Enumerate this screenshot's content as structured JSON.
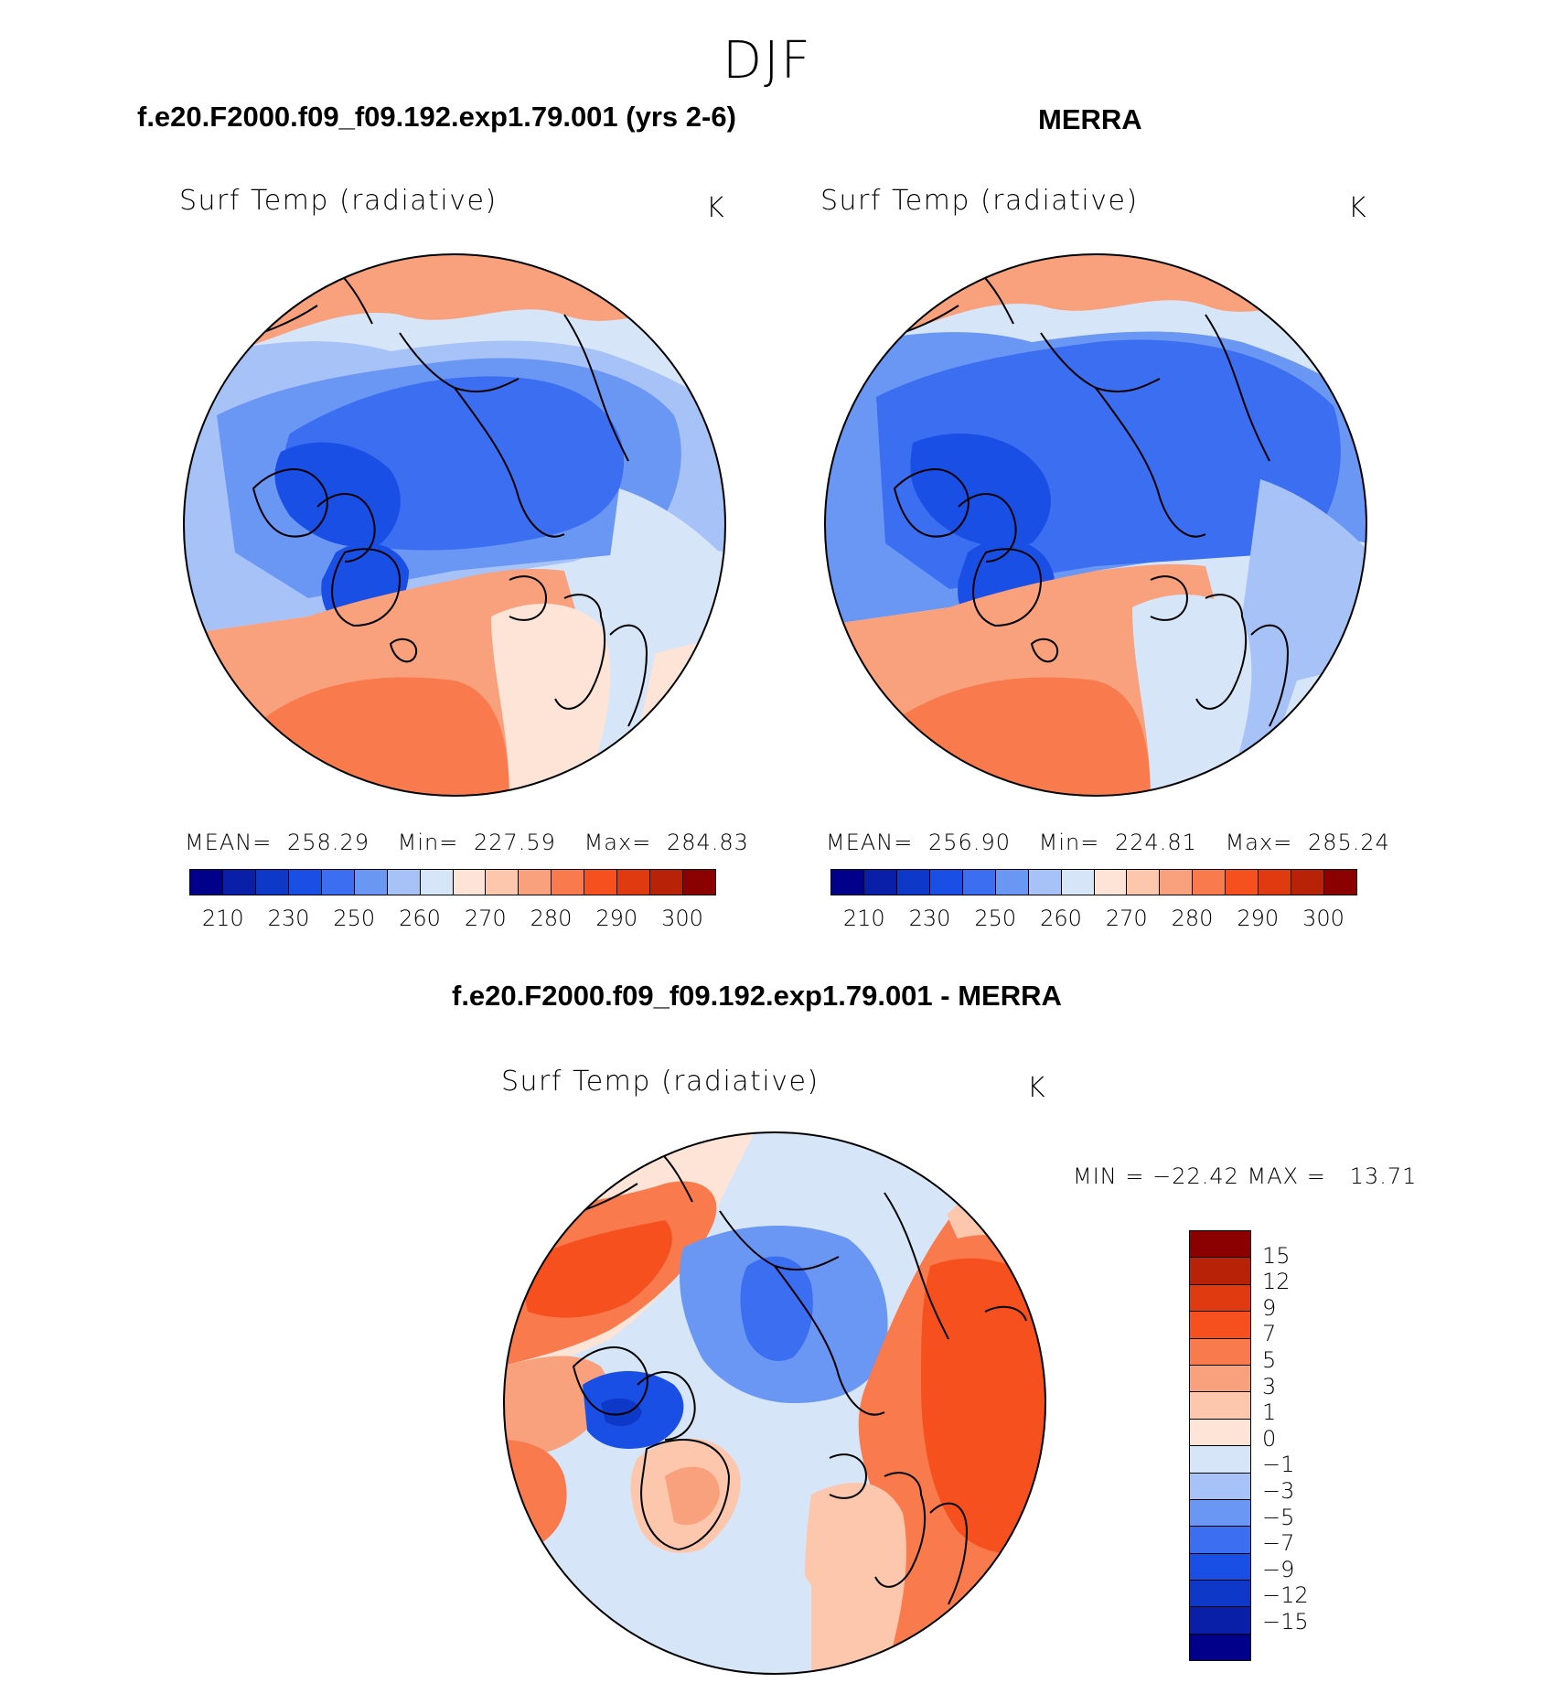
{
  "figure": {
    "title": "DJF"
  },
  "panels": {
    "model": {
      "title": "f.e20.F2000.f09_f09.192.exp1.79.001 (yrs 2-6)",
      "variable": "Surf Temp (radiative)",
      "units": "K",
      "mean_label": "MEAN=",
      "mean_value": "258.29",
      "min_label": "Min=",
      "min_value": "227.59",
      "max_label": "Max=",
      "max_value": "284.83"
    },
    "obs": {
      "title": "MERRA",
      "variable": "Surf Temp (radiative)",
      "units": "K",
      "mean_label": "MEAN=",
      "mean_value": "256.90",
      "min_label": "Min=",
      "min_value": "224.81",
      "max_label": "Max=",
      "max_value": "285.24"
    },
    "diff": {
      "title": "f.e20.F2000.f09_f09.192.exp1.79.001 - MERRA",
      "variable": "Surf Temp (radiative)",
      "units": "K",
      "minmax_text": "MIN = −22.42 MAX =   13.71"
    }
  },
  "colorbar_abs": {
    "colors": [
      "#00008b",
      "#0a1fa8",
      "#0d38c8",
      "#1a4fe6",
      "#3b6ef0",
      "#6a96f4",
      "#a7c2f7",
      "#d6e6f8",
      "#fde4d6",
      "#fcc7ac",
      "#f9a07c",
      "#f87a4d",
      "#f5501e",
      "#df3a10",
      "#b82307",
      "#8b0000"
    ],
    "tick_labels": [
      "210",
      "230",
      "250",
      "260",
      "270",
      "280",
      "290",
      "300"
    ]
  },
  "colorbar_diff": {
    "colors": [
      "#8b0000",
      "#b82307",
      "#df3a10",
      "#f5501e",
      "#f87a4d",
      "#f9a07c",
      "#fcc7ac",
      "#fde4d6",
      "#d6e6f8",
      "#a7c2f7",
      "#6a96f4",
      "#3b6ef0",
      "#1a4fe6",
      "#0d38c8",
      "#0a1fa8",
      "#00008b"
    ],
    "tick_labels": [
      "15",
      "12",
      "9",
      "7",
      "5",
      "3",
      "1",
      "0",
      "−1",
      "−3",
      "−5",
      "−7",
      "−9",
      "−12",
      "−15"
    ]
  }
}
